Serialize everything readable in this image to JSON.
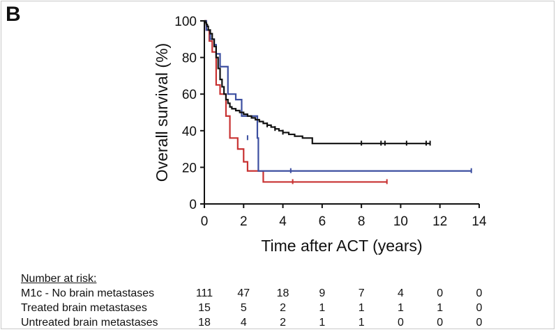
{
  "panel_label": "B",
  "chart_data": {
    "type": "line",
    "subtype": "kaplan-meier",
    "title": "",
    "xlabel": "Time after ACT (years)",
    "ylabel": "Overall survival (%)",
    "xlim": [
      0,
      14
    ],
    "ylim": [
      0,
      100
    ],
    "xticks": [
      0,
      2,
      4,
      6,
      8,
      10,
      12,
      14
    ],
    "yticks": [
      0,
      20,
      40,
      60,
      80,
      100
    ],
    "grid": false,
    "series": [
      {
        "name": "M1c - No brain metastases",
        "color": "#111111",
        "x": [
          0,
          0.05,
          0.1,
          0.15,
          0.2,
          0.3,
          0.4,
          0.5,
          0.6,
          0.7,
          0.8,
          0.9,
          1.0,
          1.1,
          1.2,
          1.3,
          1.4,
          1.6,
          1.8,
          2.0,
          2.2,
          2.4,
          2.6,
          2.8,
          3.0,
          3.2,
          3.4,
          3.6,
          3.8,
          4.0,
          4.3,
          4.6,
          5.0,
          5.5,
          11.5
        ],
        "y": [
          100,
          99,
          98,
          97,
          95,
          93,
          90,
          86,
          80,
          74,
          68,
          64,
          60,
          57,
          55,
          53,
          52,
          51,
          50,
          49,
          48,
          47,
          46,
          45,
          44,
          43,
          42,
          41,
          40,
          39,
          38,
          37,
          36,
          33,
          33
        ],
        "censored": [
          [
            3.2,
            43
          ],
          [
            3.6,
            41
          ],
          [
            4.0,
            39
          ],
          [
            8.0,
            33
          ],
          [
            9.0,
            33
          ],
          [
            9.2,
            33
          ],
          [
            10.3,
            33
          ],
          [
            11.3,
            33
          ],
          [
            11.5,
            33
          ]
        ]
      },
      {
        "name": "Treated brain metastases",
        "color": "#3c4fa0",
        "x": [
          0,
          0.1,
          0.3,
          0.5,
          0.6,
          0.8,
          1.2,
          1.6,
          1.9,
          2.7,
          2.75,
          13.6
        ],
        "y": [
          100,
          95,
          90,
          87,
          82,
          75,
          60,
          57,
          48,
          36,
          18,
          18
        ],
        "censored": [
          [
            2.2,
            36
          ],
          [
            4.4,
            18
          ],
          [
            13.6,
            18
          ]
        ]
      },
      {
        "name": "Untreated brain metastases",
        "color": "#c83232",
        "x": [
          0,
          0.1,
          0.25,
          0.4,
          0.6,
          0.8,
          1.1,
          1.3,
          1.7,
          2.0,
          2.2,
          3.0,
          9.3
        ],
        "y": [
          100,
          95,
          89,
          83,
          65,
          60,
          48,
          36,
          30,
          23,
          18,
          12,
          12
        ],
        "censored": [
          [
            4.5,
            12
          ],
          [
            9.3,
            12
          ]
        ]
      }
    ]
  },
  "risk_table": {
    "header": "Number at risk:",
    "timepoints": [
      0,
      2,
      4,
      6,
      8,
      10,
      12,
      14
    ],
    "rows": [
      {
        "label": "M1c - No brain metastases",
        "values": [
          "111",
          "47",
          "18",
          "9",
          "7",
          "4",
          "0",
          "0"
        ]
      },
      {
        "label": "Treated brain metastases",
        "values": [
          "15",
          "5",
          "2",
          "1",
          "1",
          "1",
          "1",
          "0"
        ]
      },
      {
        "label": "Untreated brain metastases",
        "values": [
          "18",
          "4",
          "2",
          "1",
          "1",
          "0",
          "0",
          "0"
        ]
      }
    ]
  }
}
